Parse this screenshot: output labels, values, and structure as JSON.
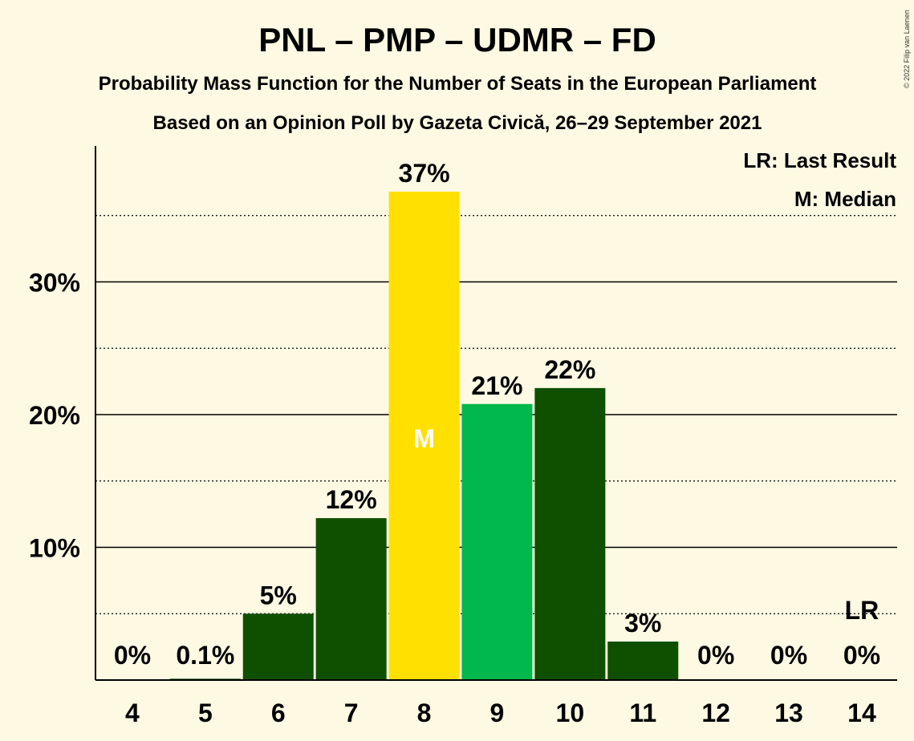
{
  "title": "PNL – PMP – UDMR – FD",
  "subtitle1": "Probability Mass Function for the Number of Seats in the European Parliament",
  "subtitle2": "Based on an Opinion Poll by Gazeta Civică, 26–29 September 2021",
  "copyright": "© 2022 Filip van Laenen",
  "legend": {
    "last_result": "LR: Last Result",
    "median": "M: Median"
  },
  "colors": {
    "background": "#fef9e3",
    "dark_green": "#0f5000",
    "median_yellow": "#ffe000",
    "bright_green": "#00b84b"
  },
  "chart_data": {
    "type": "bar",
    "title": "PNL – PMP – UDMR – FD",
    "categories": [
      "4",
      "5",
      "6",
      "7",
      "8",
      "9",
      "10",
      "11",
      "12",
      "13",
      "14"
    ],
    "values": [
      0,
      0.1,
      5,
      12.2,
      36.8,
      20.8,
      22,
      2.9,
      0,
      0,
      0
    ],
    "data_labels": [
      "0%",
      "0.1%",
      "5%",
      "12%",
      "37%",
      "21%",
      "22%",
      "3%",
      "0%",
      "0%",
      "0%"
    ],
    "bar_colors": [
      "#0f5000",
      "#0f5000",
      "#0f5000",
      "#0f5000",
      "#ffe000",
      "#00b84b",
      "#0f5000",
      "#0f5000",
      "#0f5000",
      "#0f5000",
      "#0f5000"
    ],
    "median_category": "8",
    "median_marker": "M",
    "last_result_category": "14",
    "last_result_marker": "LR",
    "ylim": [
      0,
      40
    ],
    "yticks": [
      10,
      20,
      30
    ],
    "ytick_labels": [
      "10%",
      "20%",
      "30%"
    ],
    "minor_gridlines": [
      5,
      15,
      25,
      35
    ],
    "xlabel": "",
    "ylabel": "",
    "legend_position": "top-right"
  }
}
